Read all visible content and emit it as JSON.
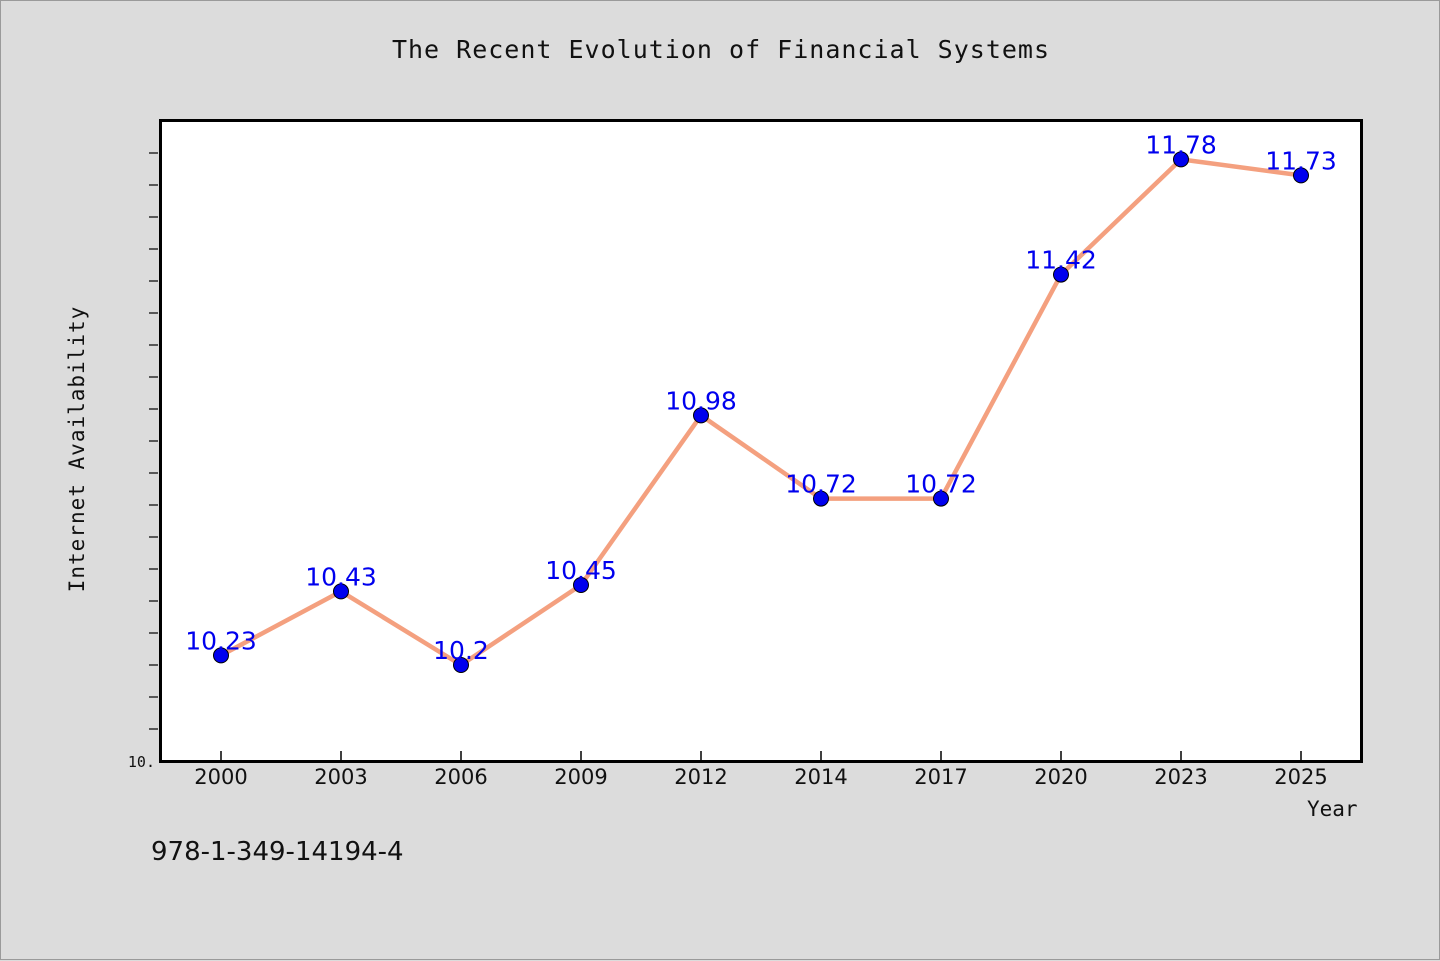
{
  "chart_data": {
    "type": "line",
    "title": "The Recent Evolution of Financial Systems",
    "xlabel": "Year",
    "ylabel": "Internet Availability",
    "categories": [
      "2000",
      "2003",
      "2006",
      "2009",
      "2012",
      "2014",
      "2017",
      "2020",
      "2023",
      "2025"
    ],
    "series": [
      {
        "values": [
          10.23,
          10.43,
          10.2,
          10.45,
          10.98,
          10.72,
          10.72,
          11.42,
          11.78,
          11.73
        ],
        "labels": [
          "10.23",
          "10.43",
          "10.2",
          "10.45",
          "10.98",
          "10.72",
          "10.72",
          "11.42",
          "11.78",
          "11.73"
        ],
        "line_color": "#f4a07f",
        "marker_color": "#0000ee",
        "label_color": "#0000ee"
      }
    ],
    "ylim": [
      9.9,
      11.9
    ],
    "y_tick_label": "10.",
    "grid": false,
    "legend": "none"
  },
  "footer": {
    "isbn": "978-1-349-14194-4"
  }
}
